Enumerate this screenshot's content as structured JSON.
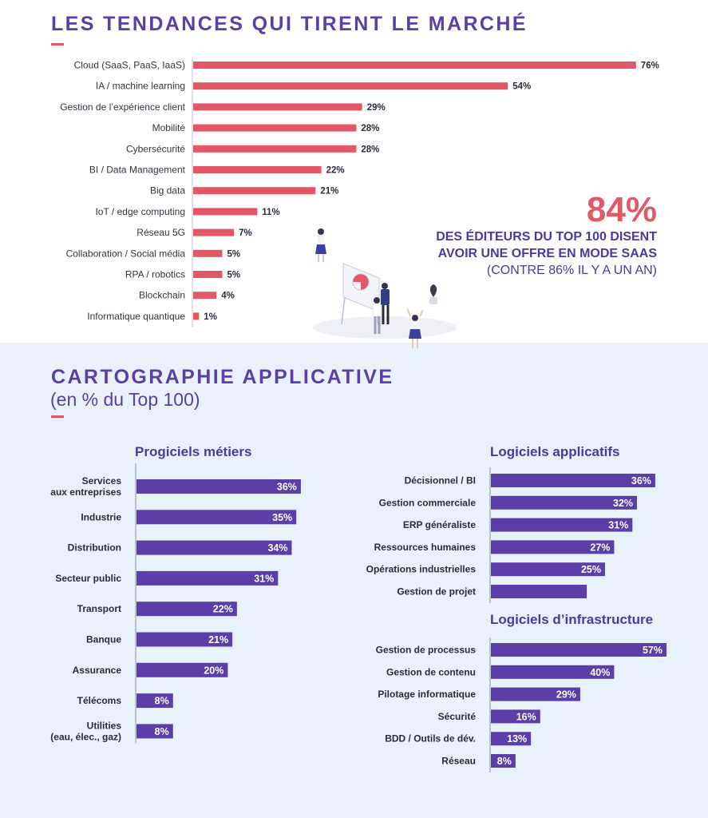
{
  "title": "LES TENDANCES QUI TIRENT LE MARCHÉ",
  "callout": {
    "big": "84%",
    "line1": "DES ÉDITEURS DU TOP 100 DISENT",
    "line2": "AVOIR UNE OFFRE EN MODE SAAS",
    "line3": "(CONTRE 86% IL Y A UN AN)"
  },
  "section2": {
    "title": "CARTOGRAPHIE APPLICATIVE",
    "subtitle": "(en % du Top 100)"
  },
  "colors": {
    "accent_red": "#e25866",
    "accent_purple": "#5b3ea8",
    "bar_purple": "#5b3ea8",
    "bottom_bg": "#e9f1fb"
  },
  "chart_data": [
    {
      "type": "bar",
      "orientation": "horizontal",
      "title": "",
      "categories": [
        "Cloud (SaaS, PaaS, IaaS)",
        "IA / machine learning",
        "Gestion de l’expérience client",
        "Mobilité",
        "Cybersécurité",
        "BI / Data Management",
        "Big data",
        "IoT / edge computing",
        "Réseau 5G",
        "Collaboration / Social média",
        "RPA / robotics",
        "Blockchain",
        "Informatique quantique"
      ],
      "values": [
        76,
        54,
        29,
        28,
        28,
        22,
        21,
        11,
        7,
        5,
        5,
        4,
        1
      ],
      "value_labels": [
        "76%",
        "54%",
        "29%",
        "28%",
        "28%",
        "22%",
        "21%",
        "11%",
        "7%",
        "5%",
        "5%",
        "4%",
        "1%"
      ],
      "color": "#e25866"
    },
    {
      "type": "bar",
      "orientation": "horizontal",
      "title": "Progiciels métiers",
      "categories": [
        [
          "Services",
          "aux entreprises"
        ],
        [
          "Industrie"
        ],
        [
          "Distribution"
        ],
        [
          "Secteur public"
        ],
        [
          "Transport"
        ],
        [
          "Banque"
        ],
        [
          "Assurance"
        ],
        [
          "Télécoms"
        ],
        [
          "Utilities",
          "(eau, élec., gaz)"
        ]
      ],
      "values": [
        36,
        35,
        34,
        31,
        22,
        21,
        20,
        8,
        8
      ],
      "value_labels": [
        "36%",
        "35%",
        "34%",
        "31%",
        "22%",
        "21%",
        "20%",
        "8%",
        "8%"
      ],
      "color": "#5b3ea8"
    },
    {
      "type": "bar",
      "orientation": "horizontal",
      "title": "Logiciels applicatifs",
      "categories": [
        "Décisionnel / BI",
        "Gestion commerciale",
        "ERP généraliste",
        "Ressources humaines",
        "Opérations industrielles",
        "Gestion de projet"
      ],
      "values": [
        36,
        32,
        31,
        27,
        25,
        21
      ],
      "value_labels": [
        "36%",
        "32%",
        "31%",
        "27%",
        "25%",
        ""
      ],
      "color": "#5b3ea8"
    },
    {
      "type": "bar",
      "orientation": "horizontal",
      "title": "Logiciels d’infrastructure",
      "categories": [
        "Gestion de processus",
        "Gestion de contenu",
        "Pilotage informatique",
        "Sécurité",
        "BDD / Outils de dév.",
        "Réseau"
      ],
      "values": [
        57,
        40,
        29,
        16,
        13,
        8
      ],
      "value_labels": [
        "57%",
        "40%",
        "29%",
        "16%",
        "13%",
        "8%"
      ],
      "color": "#5b3ea8"
    }
  ]
}
